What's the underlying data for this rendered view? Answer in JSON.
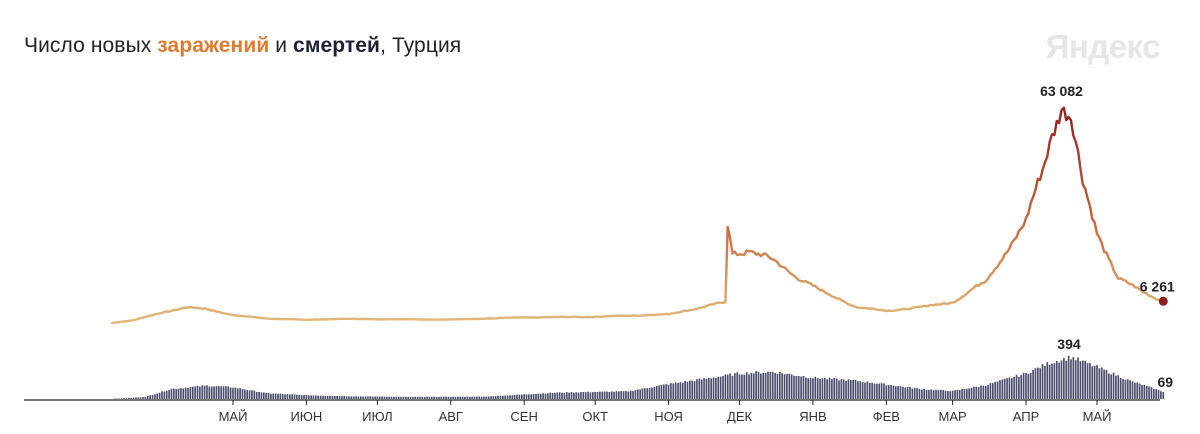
{
  "header": {
    "title_prefix": "Число новых ",
    "title_infections": "заражений",
    "title_middle": " и ",
    "title_deaths": "смертей",
    "title_suffix": ", Турция",
    "brand": "Яндекс"
  },
  "colors": {
    "infections_low": "#e3bb79",
    "infections_mid": "#c8673e",
    "infections_high": "#8b1d1d",
    "deaths_bars": "#4a4e6b",
    "axis": "#222222"
  },
  "chart_data": [
    {
      "type": "line",
      "name": "infections",
      "x_unit": "date",
      "x_range": [
        "2020-03-11",
        "2021-05-31"
      ],
      "ylim": [
        0,
        63082
      ],
      "peak": {
        "date": "2021-04-16",
        "value": 63082,
        "label": "63 082"
      },
      "last": {
        "date": "2021-05-29",
        "value": 6261,
        "label": "6 261"
      },
      "x": [
        "2020-03-11",
        "2020-03-20",
        "2020-04-01",
        "2020-04-11",
        "2020-04-20",
        "2020-05-01",
        "2020-05-15",
        "2020-06-01",
        "2020-06-15",
        "2020-07-01",
        "2020-08-01",
        "2020-09-01",
        "2020-10-01",
        "2020-11-01",
        "2020-11-25",
        "2020-11-26",
        "2020-11-28",
        "2020-12-05",
        "2020-12-15",
        "2020-12-25",
        "2021-01-05",
        "2021-01-20",
        "2021-02-01",
        "2021-02-15",
        "2021-03-01",
        "2021-03-15",
        "2021-03-25",
        "2021-04-01",
        "2021-04-08",
        "2021-04-12",
        "2021-04-16",
        "2021-04-20",
        "2021-04-25",
        "2021-05-01",
        "2021-05-10",
        "2021-05-20",
        "2021-05-29"
      ],
      "values": [
        0,
        800,
        3000,
        4500,
        4000,
        2300,
        1300,
        900,
        1200,
        1100,
        1000,
        1600,
        1800,
        2500,
        6000,
        28000,
        20000,
        21000,
        18000,
        13500,
        9000,
        4500,
        3500,
        4500,
        6000,
        12000,
        22000,
        29000,
        44000,
        55000,
        63082,
        59000,
        40000,
        26000,
        13000,
        9000,
        6261
      ]
    },
    {
      "type": "bar",
      "name": "deaths",
      "x_unit": "date",
      "x_range": [
        "2020-03-11",
        "2021-05-31"
      ],
      "ylim": [
        0,
        394
      ],
      "peak": {
        "date": "2021-04-20",
        "value": 394,
        "label": "394"
      },
      "last": {
        "date": "2021-05-29",
        "value": 69,
        "label": "69"
      },
      "x": [
        "2020-03-11",
        "2020-03-25",
        "2020-04-05",
        "2020-04-20",
        "2020-05-01",
        "2020-05-15",
        "2020-06-01",
        "2020-06-20",
        "2020-07-15",
        "2020-08-15",
        "2020-09-15",
        "2020-10-15",
        "2020-11-01",
        "2020-11-15",
        "2020-12-01",
        "2020-12-15",
        "2021-01-01",
        "2021-01-20",
        "2021-02-15",
        "2021-03-01",
        "2021-03-15",
        "2021-04-01",
        "2021-04-10",
        "2021-04-20",
        "2021-05-01",
        "2021-05-15",
        "2021-05-29"
      ],
      "values": [
        0,
        20,
        95,
        125,
        110,
        55,
        35,
        25,
        20,
        22,
        60,
        72,
        140,
        185,
        240,
        255,
        200,
        170,
        95,
        75,
        130,
        240,
        330,
        394,
        300,
        170,
        69
      ]
    }
  ],
  "axis": {
    "ticks": [
      {
        "label": "МАЙ",
        "date": "2020-05-01"
      },
      {
        "label": "ИЮН",
        "date": "2020-06-01"
      },
      {
        "label": "ИЮЛ",
        "date": "2020-07-01"
      },
      {
        "label": "АВГ",
        "date": "2020-08-01"
      },
      {
        "label": "СЕН",
        "date": "2020-09-01"
      },
      {
        "label": "ОКТ",
        "date": "2020-10-01"
      },
      {
        "label": "НОЯ",
        "date": "2020-11-01"
      },
      {
        "label": "ДЕК",
        "date": "2020-12-01"
      },
      {
        "label": "ЯНВ",
        "date": "2021-01-01"
      },
      {
        "label": "ФЕВ",
        "date": "2021-02-01"
      },
      {
        "label": "МАР",
        "date": "2021-03-01"
      },
      {
        "label": "АПР",
        "date": "2021-04-01"
      },
      {
        "label": "МАЙ",
        "date": "2021-05-01"
      }
    ]
  }
}
